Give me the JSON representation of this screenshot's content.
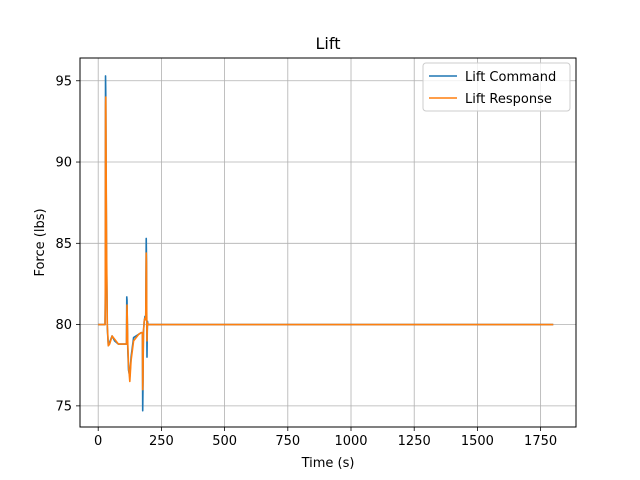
{
  "chart_data": {
    "type": "line",
    "title": "Lift",
    "xlabel": "Time (s)",
    "ylabel": "Force (lbs)",
    "xlim": [
      -72,
      1890
    ],
    "ylim": [
      73.7,
      96.4
    ],
    "xticks": [
      0,
      250,
      500,
      750,
      1000,
      1250,
      1500,
      1750
    ],
    "yticks": [
      75,
      80,
      85,
      90,
      95
    ],
    "grid": true,
    "legend": "top-right",
    "series": [
      {
        "name": "Lift Command",
        "color": "#1f77b4",
        "x": [
          0,
          22,
          25,
          27,
          28,
          29,
          30,
          31,
          33,
          36,
          40,
          45,
          55,
          65,
          80,
          100,
          112,
          113,
          114,
          115,
          117,
          120,
          125,
          130,
          140,
          150,
          160,
          170,
          175,
          176,
          177,
          178,
          179,
          182,
          185,
          188,
          190,
          191,
          192,
          193,
          194,
          195,
          197,
          200,
          210,
          230,
          300,
          500,
          1000,
          1500,
          1800
        ],
        "y": [
          80.0,
          80.0,
          80.0,
          80.0,
          82.0,
          95.3,
          94.0,
          90.0,
          84.0,
          79.8,
          78.7,
          78.9,
          79.3,
          79.0,
          78.8,
          78.8,
          78.8,
          81.7,
          81.5,
          80.3,
          78.5,
          77.2,
          76.8,
          78.0,
          79.2,
          79.3,
          79.4,
          79.5,
          79.5,
          74.7,
          76.0,
          78.0,
          79.5,
          80.2,
          80.5,
          80.3,
          85.3,
          84.0,
          80.2,
          78.0,
          79.5,
          80.2,
          80.0,
          80.0,
          80.0,
          80.0,
          80.0,
          80.0,
          80.0,
          80.0,
          80.0
        ]
      },
      {
        "name": "Lift Response",
        "color": "#ff7f0e",
        "x": [
          0,
          22,
          25,
          27,
          28,
          29,
          30,
          31,
          33,
          36,
          40,
          45,
          55,
          65,
          80,
          100,
          112,
          113,
          114,
          115,
          117,
          120,
          125,
          130,
          140,
          150,
          160,
          170,
          175,
          176,
          177,
          178,
          179,
          182,
          185,
          188,
          190,
          191,
          192,
          193,
          194,
          195,
          197,
          200,
          210,
          230,
          300,
          500,
          1000,
          1500,
          1800
        ],
        "y": [
          80.0,
          80.0,
          80.0,
          80.0,
          81.0,
          93.5,
          94.0,
          91.0,
          85.0,
          80.0,
          78.7,
          78.8,
          79.3,
          79.1,
          78.8,
          78.8,
          78.8,
          80.5,
          81.2,
          80.5,
          78.8,
          77.5,
          76.5,
          77.8,
          79.0,
          79.2,
          79.4,
          79.5,
          79.5,
          76.0,
          76.5,
          78.3,
          79.6,
          80.2,
          80.4,
          80.3,
          84.4,
          83.8,
          80.8,
          79.0,
          79.8,
          80.1,
          80.0,
          80.0,
          80.0,
          80.0,
          80.0,
          80.0,
          80.0,
          80.0,
          80.0
        ]
      }
    ]
  }
}
